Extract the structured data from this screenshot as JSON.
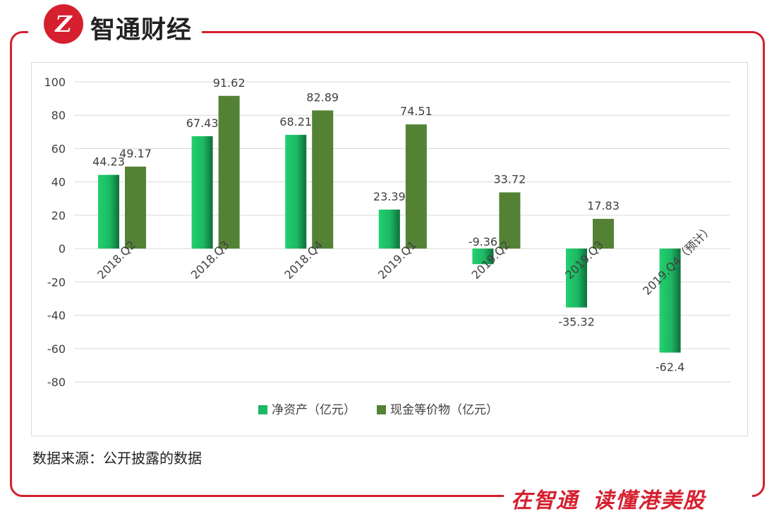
{
  "brand": {
    "logo_letter": "Z",
    "name": "智通财经"
  },
  "source_note": "数据来源：公开披露的数据",
  "slogan": {
    "part1": "在智通",
    "part2": "读懂港美股"
  },
  "colors": {
    "accent": "#d62030",
    "series1": "#1cb862",
    "series2": "#548235"
  },
  "chart_data": {
    "type": "bar",
    "categories": [
      "2018.Q2",
      "2018.Q3",
      "2018.Q4",
      "2019.Q1",
      "2019.Q2",
      "2019.Q3",
      "2019.Q4（预计）"
    ],
    "series": [
      {
        "name": "净资产（亿元）",
        "values": [
          44.23,
          67.43,
          68.21,
          23.39,
          -9.36,
          -35.32,
          -62.4
        ],
        "labels": [
          "44.23",
          "67.43",
          "68.21",
          "23.39",
          "-9.36",
          "-35.32",
          "-62.4"
        ]
      },
      {
        "name": "现金等价物（亿元）",
        "values": [
          49.17,
          91.62,
          82.89,
          74.51,
          33.72,
          17.83,
          null
        ],
        "labels": [
          "49.17",
          "91.62",
          "82.89",
          "74.51",
          "33.72",
          "17.83",
          ""
        ]
      }
    ],
    "yticks": [
      "100",
      "80",
      "60",
      "40",
      "20",
      "0",
      "-20",
      "-40",
      "-60",
      "-80"
    ],
    "ylim": [
      -80,
      100
    ],
    "grid": true,
    "legend": "bottom"
  }
}
